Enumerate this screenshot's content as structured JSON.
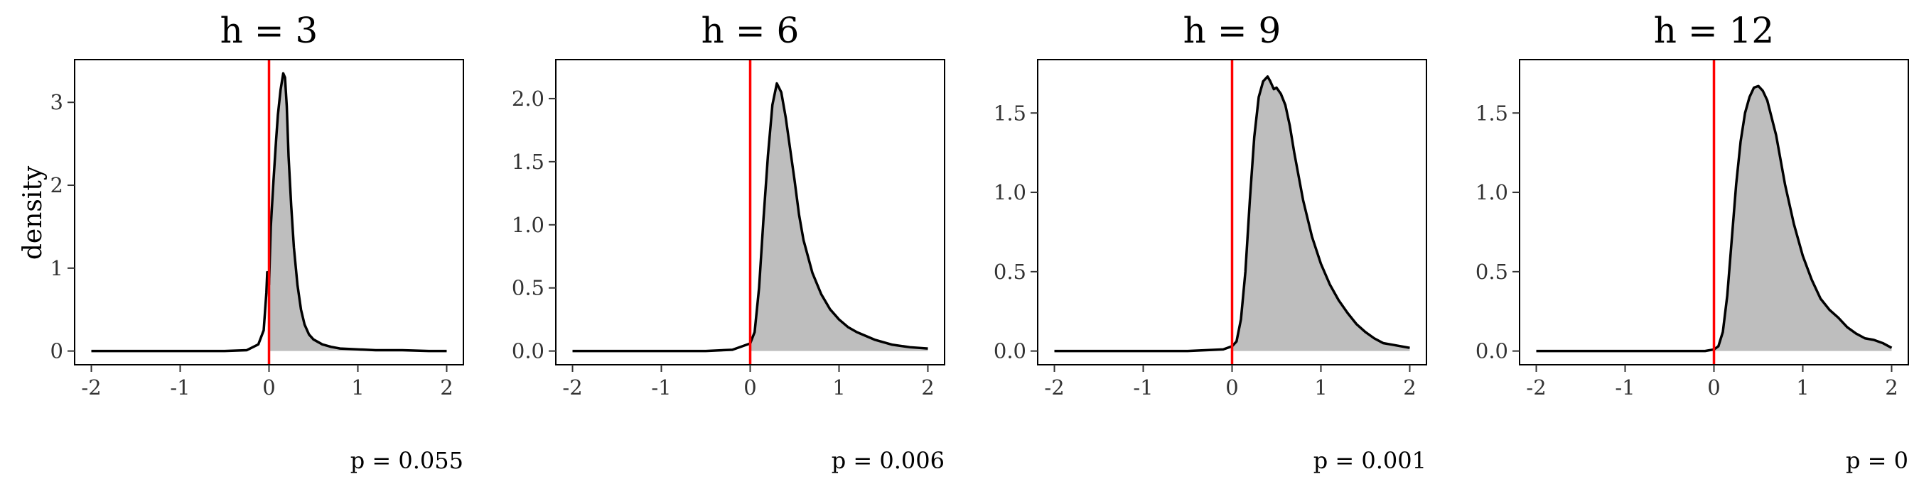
{
  "colors": {
    "fill": "#bebebe",
    "curve": "#000000",
    "vline": "#ff0000",
    "frame": "#000000"
  },
  "ylabel": "density",
  "chart_data": [
    {
      "type": "area",
      "title": "h = 3",
      "xlim": [
        -2,
        2
      ],
      "ylim": [
        0,
        3.35
      ],
      "xticks": [
        -2,
        -1,
        0,
        1,
        2
      ],
      "yticks": [
        0,
        1,
        2,
        3
      ],
      "vline": 0,
      "annotation": {
        "label": "p = ",
        "value": "0.055"
      },
      "density": {
        "x": [
          -2.0,
          -1.5,
          -1.0,
          -0.5,
          -0.25,
          -0.12,
          -0.06,
          -0.03,
          -0.02,
          0.0,
          0.02,
          0.05,
          0.08,
          0.1,
          0.13,
          0.16,
          0.18,
          0.2,
          0.22,
          0.25,
          0.28,
          0.32,
          0.36,
          0.4,
          0.45,
          0.5,
          0.6,
          0.7,
          0.8,
          1.0,
          1.2,
          1.5,
          1.8,
          2.0
        ],
        "y": [
          0.0,
          0.0,
          0.0,
          0.0,
          0.01,
          0.08,
          0.25,
          0.7,
          0.95,
          0.8,
          1.5,
          2.05,
          2.55,
          2.85,
          3.15,
          3.35,
          3.3,
          2.95,
          2.35,
          1.75,
          1.25,
          0.8,
          0.5,
          0.32,
          0.2,
          0.14,
          0.08,
          0.05,
          0.03,
          0.02,
          0.01,
          0.01,
          0.0,
          0.0
        ]
      }
    },
    {
      "type": "area",
      "title": "h = 6",
      "xlim": [
        -2,
        2
      ],
      "ylim": [
        0,
        2.2
      ],
      "xticks": [
        -2,
        -1,
        0,
        1,
        2
      ],
      "yticks": [
        0.0,
        0.5,
        1.0,
        1.5,
        2.0
      ],
      "yticklabels": [
        "0.0",
        "0.5",
        "1.0",
        "1.5",
        "2.0"
      ],
      "vline": 0,
      "annotation": {
        "label": "p = ",
        "value": "0.006"
      },
      "density": {
        "x": [
          -2.0,
          -1.0,
          -0.5,
          -0.2,
          0.0,
          0.05,
          0.1,
          0.15,
          0.2,
          0.25,
          0.3,
          0.35,
          0.4,
          0.45,
          0.5,
          0.55,
          0.6,
          0.7,
          0.8,
          0.9,
          1.0,
          1.1,
          1.2,
          1.4,
          1.6,
          1.8,
          2.0
        ],
        "y": [
          0.0,
          0.0,
          0.0,
          0.01,
          0.06,
          0.15,
          0.5,
          1.05,
          1.55,
          1.95,
          2.12,
          2.05,
          1.85,
          1.6,
          1.35,
          1.08,
          0.88,
          0.62,
          0.45,
          0.33,
          0.25,
          0.19,
          0.15,
          0.09,
          0.05,
          0.03,
          0.02
        ]
      }
    },
    {
      "type": "area",
      "title": "h = 9",
      "xlim": [
        -2,
        2
      ],
      "ylim": [
        0,
        1.75
      ],
      "xticks": [
        -2,
        -1,
        0,
        1,
        2
      ],
      "yticks": [
        0.0,
        0.5,
        1.0,
        1.5
      ],
      "yticklabels": [
        "0.0",
        "0.5",
        "1.0",
        "1.5"
      ],
      "vline": 0,
      "annotation": {
        "label": "p = ",
        "value": "0.001"
      },
      "density": {
        "x": [
          -2.0,
          -1.0,
          -0.5,
          -0.1,
          0.0,
          0.05,
          0.1,
          0.15,
          0.2,
          0.25,
          0.3,
          0.35,
          0.4,
          0.43,
          0.47,
          0.5,
          0.55,
          0.6,
          0.65,
          0.7,
          0.8,
          0.9,
          1.0,
          1.1,
          1.2,
          1.3,
          1.4,
          1.5,
          1.6,
          1.7,
          1.8,
          1.9,
          2.0
        ],
        "y": [
          0.0,
          0.0,
          0.0,
          0.01,
          0.03,
          0.06,
          0.2,
          0.5,
          0.95,
          1.35,
          1.6,
          1.7,
          1.73,
          1.7,
          1.65,
          1.66,
          1.62,
          1.55,
          1.42,
          1.25,
          0.95,
          0.72,
          0.55,
          0.42,
          0.32,
          0.24,
          0.17,
          0.12,
          0.08,
          0.05,
          0.04,
          0.03,
          0.02
        ]
      }
    },
    {
      "type": "area",
      "title": "h = 12",
      "xlim": [
        -2,
        2
      ],
      "ylim": [
        0,
        1.75
      ],
      "xticks": [
        -2,
        -1,
        0,
        1,
        2
      ],
      "yticks": [
        0.0,
        0.5,
        1.0,
        1.5
      ],
      "yticklabels": [
        "0.0",
        "0.5",
        "1.0",
        "1.5"
      ],
      "vline": 0,
      "annotation": {
        "label": "p = ",
        "value": "0"
      },
      "density": {
        "x": [
          -2.0,
          -1.0,
          -0.5,
          -0.1,
          0.0,
          0.05,
          0.1,
          0.15,
          0.2,
          0.25,
          0.3,
          0.35,
          0.4,
          0.45,
          0.5,
          0.55,
          0.6,
          0.7,
          0.8,
          0.9,
          1.0,
          1.1,
          1.2,
          1.3,
          1.4,
          1.5,
          1.6,
          1.7,
          1.8,
          1.9,
          2.0
        ],
        "y": [
          0.0,
          0.0,
          0.0,
          0.0,
          0.01,
          0.03,
          0.12,
          0.35,
          0.7,
          1.05,
          1.32,
          1.5,
          1.6,
          1.66,
          1.67,
          1.64,
          1.58,
          1.36,
          1.05,
          0.8,
          0.6,
          0.45,
          0.33,
          0.26,
          0.21,
          0.15,
          0.11,
          0.08,
          0.07,
          0.05,
          0.02
        ]
      }
    }
  ]
}
